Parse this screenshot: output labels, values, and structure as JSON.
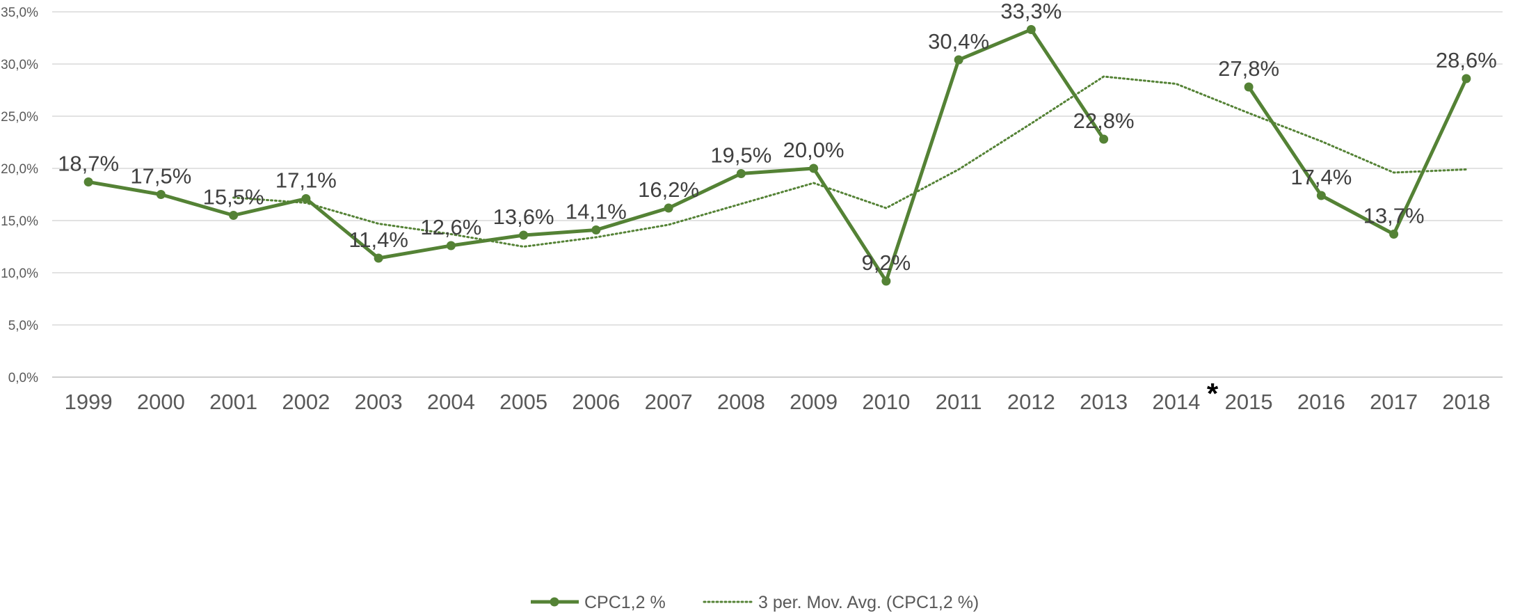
{
  "chart_data": {
    "type": "line",
    "title": "",
    "xlabel": "",
    "ylabel": "",
    "ylim": [
      0,
      35
    ],
    "y_ticks": [
      0,
      5,
      10,
      15,
      20,
      25,
      30,
      35
    ],
    "y_tick_labels": [
      "0,0%",
      "5,0%",
      "10,0%",
      "15,0%",
      "20,0%",
      "25,0%",
      "30,0%",
      "35,0%"
    ],
    "categories": [
      "1999",
      "2000",
      "2001",
      "2002",
      "2003",
      "2004",
      "2005",
      "2006",
      "2007",
      "2008",
      "2009",
      "2010",
      "2011",
      "2012",
      "2013",
      "2014",
      "2015",
      "2016",
      "2017",
      "2018"
    ],
    "grid": true,
    "legend_position": "bottom",
    "series": [
      {
        "name": "CPC1,2 %",
        "color": "#548235",
        "style": "solid-markers",
        "values": [
          18.7,
          17.5,
          15.5,
          17.1,
          11.4,
          12.6,
          13.6,
          14.1,
          16.2,
          19.5,
          20.0,
          9.2,
          30.4,
          33.3,
          22.8,
          null,
          27.8,
          17.4,
          13.7,
          28.6
        ],
        "data_labels": [
          "18,7%",
          "17,5%",
          "15,5%",
          "17,1%",
          "11,4%",
          "12,6%",
          "13,6%",
          "14,1%",
          "16,2%",
          "19,5%",
          "20,0%",
          "9,2%",
          "30,4%",
          "33,3%",
          "22,8%",
          "",
          "27,8%",
          "17,4%",
          "13,7%",
          "28,6%"
        ]
      },
      {
        "name": "3 per. Mov. Avg. (CPC1,2 %)",
        "color": "#548235",
        "style": "dotted",
        "values": [
          null,
          null,
          17.2,
          16.7,
          14.7,
          13.7,
          12.5,
          13.4,
          14.6,
          16.6,
          18.6,
          16.2,
          19.9,
          24.3,
          28.8,
          28.1,
          25.3,
          22.6,
          19.6,
          19.9
        ]
      }
    ],
    "annotations": [
      {
        "text": "*",
        "between": [
          "2014",
          "2015"
        ]
      }
    ]
  }
}
